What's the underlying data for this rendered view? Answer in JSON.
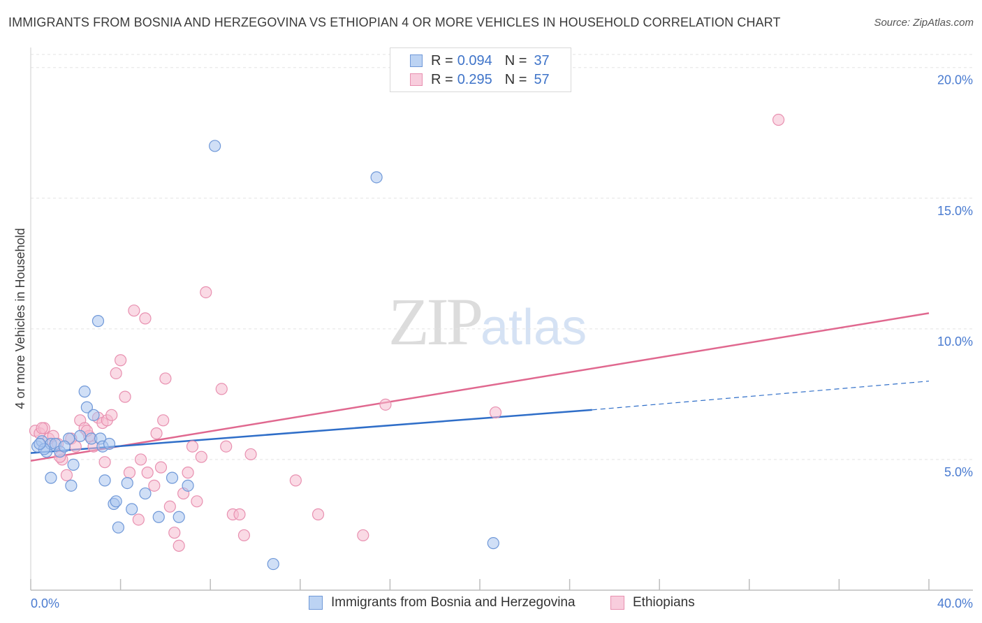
{
  "title": "IMMIGRANTS FROM BOSNIA AND HERZEGOVINA VS ETHIOPIAN 4 OR MORE VEHICLES IN HOUSEHOLD CORRELATION CHART",
  "source": "Source: ZipAtlas.com",
  "watermark": {
    "zip": "ZIP",
    "atlas": "atlas"
  },
  "legend": {
    "r_label": "R =",
    "n_label": "N =",
    "series1": {
      "r": "0.094",
      "n": "37"
    },
    "series2": {
      "r": "0.295",
      "n": "57"
    }
  },
  "colors": {
    "blue_fill": "#a9c5ee",
    "blue_stroke": "#6f98d8",
    "blue_line": "#2f6ec8",
    "pink_fill": "#f6bcd0",
    "pink_stroke": "#e890b0",
    "pink_line": "#e0688f"
  },
  "chart_data": {
    "type": "scatter",
    "title": "IMMIGRANTS FROM BOSNIA AND HERZEGOVINA VS ETHIOPIAN 4 OR MORE VEHICLES IN HOUSEHOLD CORRELATION CHART",
    "xlabel": "",
    "ylabel": "4 or more Vehicles in Household",
    "xlim": [
      0,
      40
    ],
    "ylim": [
      0,
      20.5
    ],
    "x_tick_labels": {
      "min": "0.0%",
      "max": "40.0%"
    },
    "y_ticks": [
      5,
      10,
      15,
      20
    ],
    "y_tick_labels": [
      "5.0%",
      "10.0%",
      "15.0%",
      "20.0%"
    ],
    "grid": true,
    "series": [
      {
        "name": "Immigrants from Bosnia and Herzegovina",
        "color": "blue",
        "points": [
          [
            0.3,
            5.5
          ],
          [
            0.5,
            5.7
          ],
          [
            0.7,
            5.3
          ],
          [
            0.9,
            5.6
          ],
          [
            1.1,
            5.6
          ],
          [
            1.3,
            5.3
          ],
          [
            0.9,
            4.3
          ],
          [
            1.7,
            5.8
          ],
          [
            1.9,
            4.8
          ],
          [
            1.8,
            4.0
          ],
          [
            2.4,
            7.6
          ],
          [
            2.5,
            7.0
          ],
          [
            2.7,
            5.8
          ],
          [
            2.8,
            6.7
          ],
          [
            3.1,
            5.8
          ],
          [
            3.2,
            5.5
          ],
          [
            3.3,
            4.2
          ],
          [
            3.0,
            10.3
          ],
          [
            3.7,
            3.3
          ],
          [
            3.8,
            3.4
          ],
          [
            3.9,
            2.4
          ],
          [
            4.3,
            4.1
          ],
          [
            4.5,
            3.1
          ],
          [
            5.1,
            3.7
          ],
          [
            5.7,
            2.8
          ],
          [
            6.3,
            4.3
          ],
          [
            6.6,
            2.8
          ],
          [
            7.0,
            4.0
          ],
          [
            8.2,
            17.0
          ],
          [
            10.8,
            1.0
          ],
          [
            15.4,
            15.8
          ],
          [
            20.6,
            1.8
          ],
          [
            0.6,
            5.4
          ],
          [
            1.5,
            5.5
          ],
          [
            2.2,
            5.9
          ],
          [
            3.5,
            5.6
          ],
          [
            0.4,
            5.6
          ]
        ],
        "trend": {
          "x0": 0,
          "y0": 5.25,
          "x1": 25,
          "y1": 6.9,
          "dashed_to_x": 40,
          "dashed_to_y": 8.0
        }
      },
      {
        "name": "Ethiopians",
        "color": "pink",
        "points": [
          [
            0.2,
            6.1
          ],
          [
            0.4,
            6.0
          ],
          [
            0.6,
            6.2
          ],
          [
            0.8,
            5.8
          ],
          [
            1.0,
            5.9
          ],
          [
            1.2,
            5.6
          ],
          [
            1.4,
            5.0
          ],
          [
            1.6,
            4.4
          ],
          [
            1.8,
            5.8
          ],
          [
            2.0,
            5.5
          ],
          [
            2.2,
            6.5
          ],
          [
            2.4,
            6.2
          ],
          [
            2.6,
            5.9
          ],
          [
            2.8,
            5.5
          ],
          [
            3.0,
            6.6
          ],
          [
            3.2,
            6.4
          ],
          [
            3.4,
            6.5
          ],
          [
            3.6,
            6.7
          ],
          [
            3.8,
            8.3
          ],
          [
            4.0,
            8.8
          ],
          [
            4.2,
            7.4
          ],
          [
            4.4,
            4.5
          ],
          [
            4.6,
            10.7
          ],
          [
            4.8,
            2.7
          ],
          [
            4.9,
            5.0
          ],
          [
            5.1,
            10.4
          ],
          [
            5.2,
            4.5
          ],
          [
            5.5,
            4.0
          ],
          [
            5.6,
            6.0
          ],
          [
            5.8,
            4.7
          ],
          [
            5.9,
            6.5
          ],
          [
            6.0,
            8.1
          ],
          [
            6.2,
            3.2
          ],
          [
            6.4,
            2.2
          ],
          [
            6.6,
            1.7
          ],
          [
            6.8,
            3.7
          ],
          [
            7.0,
            4.5
          ],
          [
            7.2,
            5.5
          ],
          [
            7.4,
            3.4
          ],
          [
            7.6,
            5.1
          ],
          [
            7.8,
            11.4
          ],
          [
            8.5,
            7.7
          ],
          [
            8.7,
            5.5
          ],
          [
            9.0,
            2.9
          ],
          [
            9.3,
            2.9
          ],
          [
            9.5,
            2.1
          ],
          [
            9.8,
            5.2
          ],
          [
            11.8,
            4.2
          ],
          [
            12.8,
            2.9
          ],
          [
            14.8,
            2.1
          ],
          [
            15.8,
            7.1
          ],
          [
            20.7,
            6.8
          ],
          [
            33.3,
            18.0
          ],
          [
            0.5,
            6.2
          ],
          [
            1.3,
            5.1
          ],
          [
            3.3,
            4.9
          ],
          [
            2.5,
            6.1
          ]
        ],
        "trend": {
          "x0": 0,
          "y0": 4.95,
          "x1": 40,
          "y1": 10.6
        }
      }
    ]
  }
}
